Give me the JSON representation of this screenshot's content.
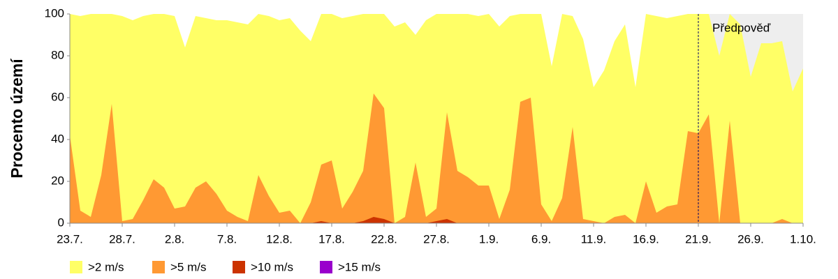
{
  "chart_data": {
    "type": "area",
    "y_label": "Procento území",
    "categories": [
      "23.7.",
      null,
      null,
      null,
      null,
      "28.7.",
      null,
      null,
      null,
      null,
      "2.8.",
      null,
      null,
      null,
      null,
      "7.8.",
      null,
      null,
      null,
      null,
      "12.8.",
      null,
      null,
      null,
      null,
      "17.8.",
      null,
      null,
      null,
      null,
      "22.8.",
      null,
      null,
      null,
      null,
      "27.8.",
      null,
      null,
      null,
      null,
      "1.9.",
      null,
      null,
      null,
      null,
      "6.9.",
      null,
      null,
      null,
      null,
      "11.9.",
      null,
      null,
      null,
      null,
      "16.9.",
      null,
      null,
      null,
      null,
      "21.9.",
      null,
      null,
      null,
      null,
      "26.9.",
      null,
      null,
      null,
      null,
      "1.10."
    ],
    "series": [
      {
        "name": ">2 m/s",
        "color": "#ffff66",
        "values": [
          100,
          99,
          100,
          100,
          100,
          99,
          97,
          99,
          100,
          100,
          99,
          84,
          99,
          98,
          97,
          97,
          96,
          95,
          100,
          99,
          97,
          98,
          92,
          87,
          100,
          100,
          98,
          99,
          100,
          100,
          100,
          94,
          96,
          90,
          97,
          100,
          100,
          100,
          100,
          99,
          100,
          94,
          99,
          100,
          100,
          100,
          75,
          100,
          99,
          88,
          65,
          73,
          87,
          95,
          65,
          100,
          99,
          98,
          99,
          100,
          100,
          100,
          80,
          100,
          95,
          70,
          86,
          86,
          87,
          63,
          74
        ]
      },
      {
        "name": ">5 m/s",
        "color": "#ff9933",
        "values": [
          42,
          6,
          3,
          23,
          57,
          1,
          2,
          11,
          21,
          17,
          7,
          8,
          17,
          20,
          14,
          6,
          3,
          1,
          23,
          13,
          5,
          6,
          0,
          10,
          28,
          30,
          7,
          15,
          25,
          62,
          55,
          0,
          3,
          29,
          3,
          7,
          53,
          25,
          22,
          18,
          18,
          2,
          16,
          58,
          60,
          9,
          1,
          12,
          46,
          2,
          1,
          0,
          3,
          4,
          0,
          20,
          5,
          8,
          9,
          44,
          43,
          52,
          0,
          49,
          0,
          0,
          0,
          0,
          2,
          0,
          0
        ]
      },
      {
        "name": ">10 m/s",
        "color": "#cc3300",
        "values": [
          0,
          0,
          0,
          0,
          0,
          0,
          0,
          0,
          0,
          0,
          0,
          0,
          0,
          0,
          0,
          0,
          0,
          0,
          0,
          0,
          0,
          0,
          0,
          0,
          1,
          0,
          0,
          0,
          1,
          3,
          2,
          0,
          0,
          0,
          0,
          1,
          2,
          0,
          0,
          0,
          0,
          0,
          0,
          0,
          0,
          0,
          0,
          0,
          0,
          0,
          0,
          0,
          0,
          0,
          0,
          0,
          0,
          0,
          0,
          0,
          0,
          0,
          0,
          0,
          0,
          0,
          0,
          0,
          0,
          0,
          0
        ]
      },
      {
        "name": ">15 m/s",
        "color": "#9900cc",
        "values": [
          0,
          0,
          0,
          0,
          0,
          0,
          0,
          0,
          0,
          0,
          0,
          0,
          0,
          0,
          0,
          0,
          0,
          0,
          0,
          0,
          0,
          0,
          0,
          0,
          0,
          0,
          0,
          0,
          0,
          0,
          0,
          0,
          0,
          0,
          0,
          0,
          0,
          0,
          0,
          0,
          0,
          0,
          0,
          0,
          0,
          0,
          0,
          0,
          0,
          0,
          0,
          0,
          0,
          0,
          0,
          0,
          0,
          0,
          0,
          0,
          0,
          0,
          0,
          0,
          0,
          0,
          0,
          0,
          0,
          0,
          0
        ]
      }
    ],
    "ylim": [
      0,
      100
    ],
    "yticks": [
      0,
      20,
      40,
      60,
      80,
      100
    ],
    "forecast": {
      "label": "Předpověď",
      "start": "21.9.",
      "color": "#eeeeee"
    },
    "legend": "bottom"
  }
}
